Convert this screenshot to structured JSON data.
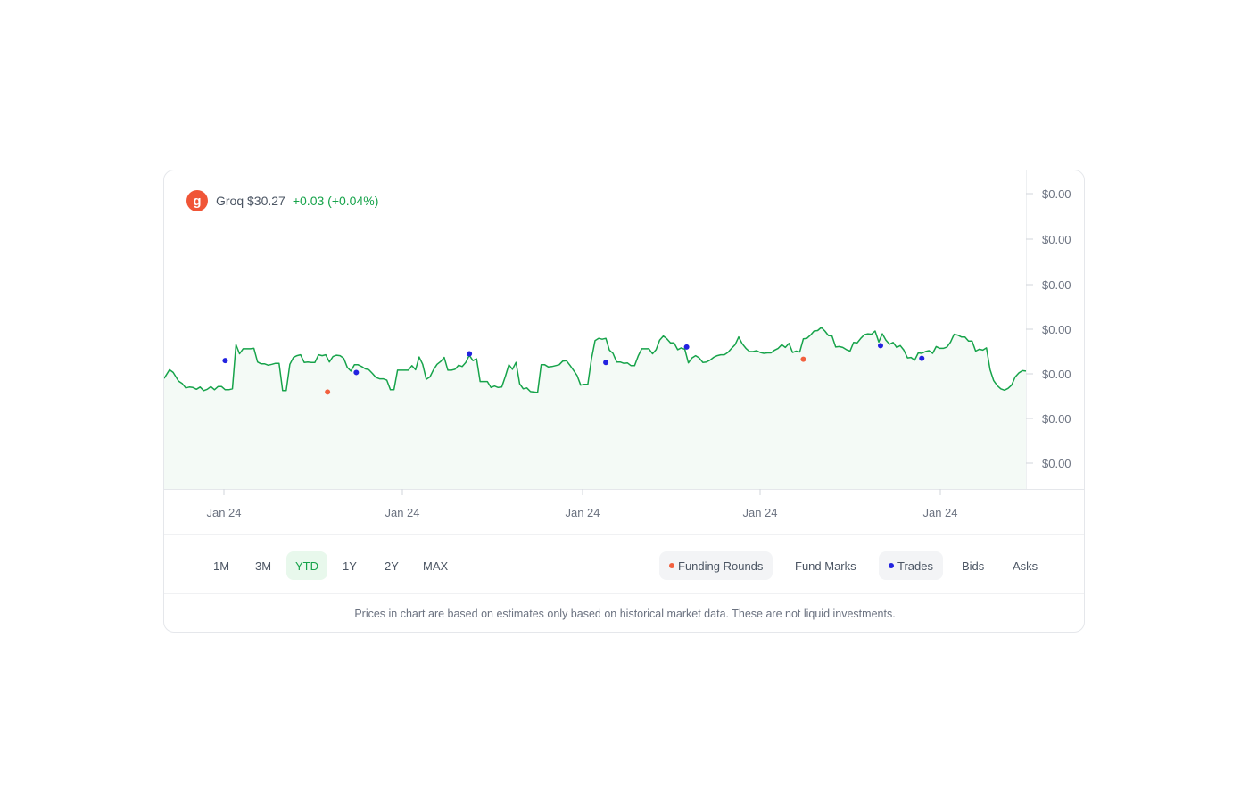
{
  "header": {
    "logo_letter": "g",
    "ticker": "Groq $30.27",
    "change": "+0.03 (+0.04%)"
  },
  "colors": {
    "line": "#16a34a",
    "fill": "#f4faf6",
    "funding": "#f2603e",
    "trades": "#2323e0",
    "logo": "#f05537"
  },
  "chart_data": {
    "type": "line",
    "y_tick_labels": [
      "$0.00",
      "$0.00",
      "$0.00",
      "$0.00",
      "$0.00",
      "$0.00",
      "$0.00"
    ],
    "x_tick_labels": [
      "Jan 24",
      "Jan 24",
      "Jan 24",
      "Jan 24",
      "Jan 24"
    ],
    "ylim": [
      0,
      700
    ],
    "xlim": [
      0,
      480
    ],
    "series": [
      {
        "values": [
          [
            0,
            243
          ],
          [
            3,
            262
          ],
          [
            5,
            256
          ],
          [
            8,
            237
          ],
          [
            10,
            232
          ],
          [
            12,
            222
          ],
          [
            14,
            224
          ],
          [
            16,
            223
          ],
          [
            18,
            219
          ],
          [
            20,
            224
          ],
          [
            22,
            216
          ],
          [
            24,
            219
          ],
          [
            26,
            225
          ],
          [
            28,
            218
          ],
          [
            30,
            225
          ],
          [
            32,
            225
          ],
          [
            34,
            218
          ],
          [
            36,
            218
          ],
          [
            38,
            220
          ],
          [
            40,
            317
          ],
          [
            42,
            297
          ],
          [
            44,
            308
          ],
          [
            46,
            308
          ],
          [
            48,
            308
          ],
          [
            50,
            309
          ],
          [
            52,
            279
          ],
          [
            54,
            275
          ],
          [
            56,
            275
          ],
          [
            58,
            272
          ],
          [
            60,
            274
          ],
          [
            62,
            276
          ],
          [
            64,
            276
          ],
          [
            66,
            216
          ],
          [
            68,
            216
          ],
          [
            70,
            274
          ],
          [
            72,
            289
          ],
          [
            74,
            293
          ],
          [
            76,
            295
          ],
          [
            78,
            278
          ],
          [
            80,
            279
          ],
          [
            82,
            278
          ],
          [
            84,
            278
          ],
          [
            86,
            295
          ],
          [
            88,
            293
          ],
          [
            90,
            295
          ],
          [
            92,
            279
          ],
          [
            94,
            291
          ],
          [
            96,
            294
          ],
          [
            98,
            293
          ],
          [
            100,
            287
          ],
          [
            102,
            267
          ],
          [
            104,
            259
          ],
          [
            106,
            273
          ],
          [
            108,
            273
          ],
          [
            110,
            269
          ],
          [
            112,
            264
          ],
          [
            114,
            262
          ],
          [
            116,
            254
          ],
          [
            118,
            245
          ],
          [
            120,
            242
          ],
          [
            122,
            242
          ],
          [
            124,
            239
          ],
          [
            126,
            218
          ],
          [
            128,
            218
          ],
          [
            130,
            261
          ],
          [
            132,
            261
          ],
          [
            134,
            261
          ],
          [
            136,
            261
          ],
          [
            138,
            271
          ],
          [
            140,
            262
          ],
          [
            142,
            290
          ],
          [
            144,
            274
          ],
          [
            146,
            241
          ],
          [
            148,
            246
          ],
          [
            150,
            262
          ],
          [
            152,
            274
          ],
          [
            154,
            280
          ],
          [
            156,
            289
          ],
          [
            158,
            261
          ],
          [
            160,
            261
          ],
          [
            162,
            263
          ],
          [
            164,
            272
          ],
          [
            166,
            269
          ],
          [
            168,
            278
          ],
          [
            170,
            294
          ],
          [
            172,
            282
          ],
          [
            174,
            286
          ],
          [
            176,
            236
          ],
          [
            178,
            236
          ],
          [
            180,
            236
          ],
          [
            182,
            223
          ],
          [
            184,
            226
          ],
          [
            186,
            223
          ],
          [
            188,
            224
          ],
          [
            190,
            247
          ],
          [
            192,
            273
          ],
          [
            194,
            263
          ],
          [
            196,
            278
          ],
          [
            198,
            231
          ],
          [
            200,
            220
          ],
          [
            202,
            222
          ],
          [
            204,
            214
          ],
          [
            206,
            213
          ],
          [
            208,
            212
          ],
          [
            210,
            273
          ],
          [
            212,
            273
          ],
          [
            214,
            268
          ],
          [
            216,
            269
          ],
          [
            218,
            271
          ],
          [
            220,
            273
          ],
          [
            222,
            281
          ],
          [
            224,
            282
          ],
          [
            226,
            272
          ],
          [
            228,
            261
          ],
          [
            230,
            249
          ],
          [
            232,
            228
          ],
          [
            234,
            230
          ],
          [
            236,
            230
          ],
          [
            238,
            286
          ],
          [
            240,
            326
          ],
          [
            242,
            331
          ],
          [
            244,
            329
          ],
          [
            246,
            331
          ],
          [
            248,
            305
          ],
          [
            250,
            298
          ],
          [
            252,
            279
          ],
          [
            254,
            279
          ],
          [
            256,
            276
          ],
          [
            258,
            277
          ],
          [
            260,
            271
          ],
          [
            262,
            271
          ],
          [
            264,
            292
          ],
          [
            266,
            308
          ],
          [
            268,
            308
          ],
          [
            270,
            308
          ],
          [
            272,
            297
          ],
          [
            274,
            306
          ],
          [
            276,
            327
          ],
          [
            278,
            336
          ],
          [
            280,
            330
          ],
          [
            282,
            321
          ],
          [
            284,
            321
          ],
          [
            286,
            306
          ],
          [
            288,
            310
          ],
          [
            290,
            307
          ],
          [
            292,
            277
          ],
          [
            294,
            288
          ],
          [
            296,
            293
          ],
          [
            298,
            288
          ],
          [
            300,
            278
          ],
          [
            302,
            279
          ],
          [
            304,
            283
          ],
          [
            306,
            289
          ],
          [
            308,
            293
          ],
          [
            310,
            295
          ],
          [
            312,
            295
          ],
          [
            314,
            300
          ],
          [
            316,
            309
          ],
          [
            318,
            317
          ],
          [
            320,
            334
          ],
          [
            322,
            319
          ],
          [
            324,
            309
          ],
          [
            326,
            302
          ],
          [
            328,
            302
          ],
          [
            330,
            304
          ],
          [
            332,
            300
          ],
          [
            334,
            298
          ],
          [
            336,
            299
          ],
          [
            338,
            299
          ],
          [
            340,
            305
          ],
          [
            342,
            309
          ],
          [
            344,
            317
          ],
          [
            346,
            311
          ],
          [
            348,
            320
          ],
          [
            350,
            300
          ],
          [
            352,
            303
          ],
          [
            354,
            301
          ],
          [
            356,
            330
          ],
          [
            358,
            331
          ],
          [
            360,
            338
          ],
          [
            362,
            347
          ],
          [
            364,
            348
          ],
          [
            366,
            355
          ],
          [
            368,
            347
          ],
          [
            370,
            337
          ],
          [
            372,
            336
          ],
          [
            374,
            312
          ],
          [
            376,
            313
          ],
          [
            378,
            311
          ],
          [
            380,
            306
          ],
          [
            382,
            303
          ],
          [
            384,
            322
          ],
          [
            386,
            321
          ],
          [
            388,
            331
          ],
          [
            390,
            339
          ],
          [
            392,
            341
          ],
          [
            394,
            340
          ],
          [
            396,
            347
          ],
          [
            398,
            323
          ],
          [
            400,
            341
          ],
          [
            402,
            327
          ],
          [
            404,
            318
          ],
          [
            406,
            322
          ],
          [
            408,
            311
          ],
          [
            410,
            315
          ],
          [
            412,
            305
          ],
          [
            414,
            288
          ],
          [
            416,
            289
          ],
          [
            418,
            283
          ],
          [
            420,
            299
          ],
          [
            422,
            298
          ],
          [
            424,
            302
          ],
          [
            426,
            304
          ],
          [
            428,
            298
          ],
          [
            430,
            313
          ],
          [
            432,
            309
          ],
          [
            434,
            309
          ],
          [
            436,
            312
          ],
          [
            438,
            323
          ],
          [
            440,
            340
          ],
          [
            442,
            338
          ],
          [
            444,
            334
          ],
          [
            446,
            334
          ],
          [
            448,
            325
          ],
          [
            450,
            325
          ],
          [
            452,
            303
          ],
          [
            454,
            307
          ],
          [
            456,
            305
          ],
          [
            458,
            310
          ],
          [
            460,
            262
          ],
          [
            462,
            238
          ],
          [
            464,
            227
          ],
          [
            466,
            220
          ],
          [
            468,
            217
          ],
          [
            470,
            221
          ],
          [
            472,
            228
          ],
          [
            474,
            246
          ],
          [
            476,
            255
          ],
          [
            478,
            260
          ],
          [
            480,
            259
          ]
        ]
      },
      {
        "name": "Funding Rounds",
        "values": [
          [
            91,
            213
          ],
          [
            356,
            285
          ]
        ]
      },
      {
        "name": "Trades",
        "values": [
          [
            34,
            282
          ],
          [
            107,
            256
          ],
          [
            170,
            297
          ],
          [
            246,
            278
          ],
          [
            291,
            312
          ],
          [
            399,
            315
          ],
          [
            422,
            287
          ]
        ]
      }
    ]
  },
  "ranges": [
    {
      "label": "1M",
      "active": false
    },
    {
      "label": "3M",
      "active": false
    },
    {
      "label": "YTD",
      "active": true
    },
    {
      "label": "1Y",
      "active": false
    },
    {
      "label": "2Y",
      "active": false
    },
    {
      "label": "MAX",
      "active": false
    }
  ],
  "toggles": {
    "funding_rounds": "Funding Rounds",
    "fund_marks": "Fund Marks",
    "trades": "Trades",
    "bids": "Bids",
    "asks": "Asks"
  },
  "footnote": "Prices in chart are based on estimates only based on historical market data. These are not liquid investments."
}
